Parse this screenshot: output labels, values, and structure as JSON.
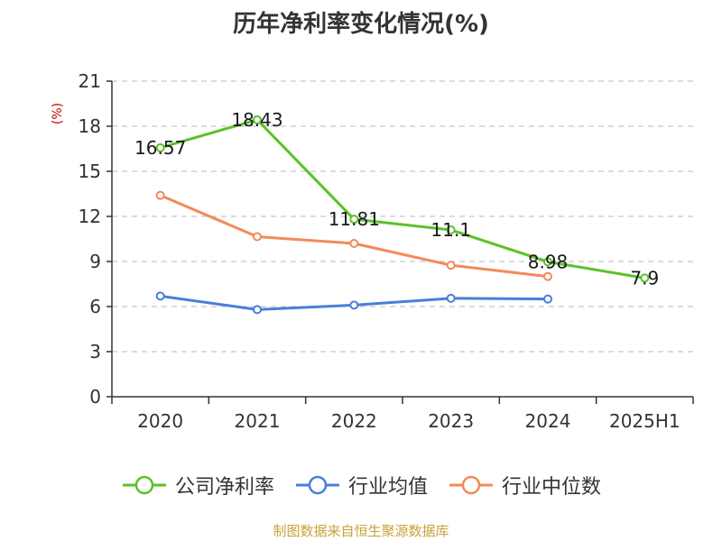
{
  "title": "历年净利率变化情况(%)",
  "source_text": "制图数据来自恒生聚源数据库",
  "colors": {
    "company": "#5cc12b",
    "industry_avg": "#4a7fd9",
    "industry_median": "#f4895a",
    "unit": "#cc0000",
    "source": "#c8a23a"
  },
  "legend": [
    {
      "label": "公司净利率",
      "color": "#5cc12b",
      "icon": "circle-line-icon"
    },
    {
      "label": "行业均值",
      "color": "#4a7fd9",
      "icon": "circle-line-icon"
    },
    {
      "label": "行业中位数",
      "color": "#f4895a",
      "icon": "circle-line-icon"
    }
  ],
  "chart_data": {
    "type": "line",
    "title": "历年净利率变化情况(%)",
    "xlabel": "",
    "ylabel": "(%)",
    "categories": [
      "2020",
      "2021",
      "2022",
      "2023",
      "2024",
      "2025H1"
    ],
    "y_ticks": [
      "0",
      "3",
      "6",
      "9",
      "12",
      "15",
      "18",
      "21"
    ],
    "ylim": [
      0,
      21
    ],
    "grid": true,
    "legend_position": "bottom",
    "series": [
      {
        "name": "公司净利率",
        "color": "#5cc12b",
        "values": [
          16.57,
          18.43,
          11.81,
          11.1,
          8.98,
          7.9
        ],
        "labels": [
          "16.57",
          "18.43",
          "11.81",
          "11.1",
          "8.98",
          "7.9"
        ]
      },
      {
        "name": "行业均值",
        "color": "#4a7fd9",
        "values": [
          6.7,
          5.8,
          6.1,
          6.55,
          6.5,
          null
        ],
        "labels": []
      },
      {
        "name": "行业中位数",
        "color": "#f4895a",
        "values": [
          13.4,
          10.65,
          10.2,
          8.75,
          8.0,
          null
        ],
        "labels": []
      }
    ]
  }
}
